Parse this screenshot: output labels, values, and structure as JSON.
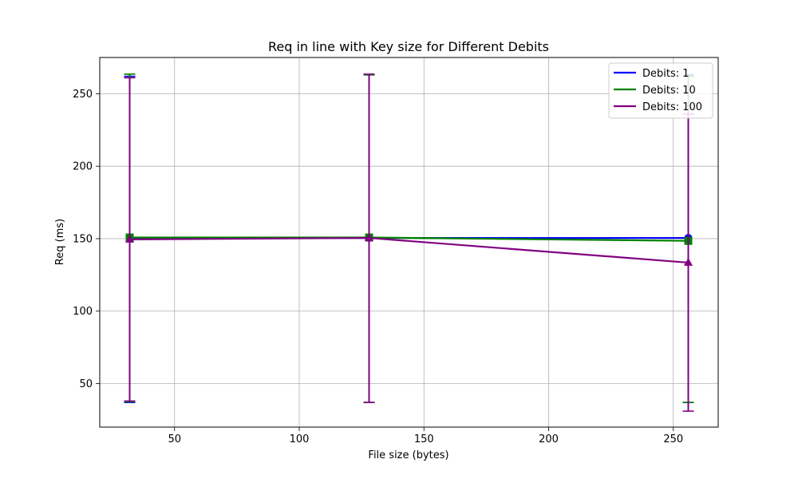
{
  "chart_data": {
    "type": "line",
    "title": "Req in line with Key size for Different Debits",
    "xlabel": "File size (bytes)",
    "ylabel": "Req (ms)",
    "xlim": [
      20,
      268
    ],
    "ylim": [
      20,
      275
    ],
    "xticks": [
      50,
      100,
      150,
      200,
      250
    ],
    "yticks": [
      50,
      100,
      150,
      200,
      250
    ],
    "grid": true,
    "legend_position": "top-right",
    "x": [
      32,
      128,
      256
    ],
    "series": [
      {
        "name": "Debits: 1",
        "color": "#0000ff",
        "marker": "circle",
        "values": [
          150.5,
          150.5,
          150.5
        ],
        "err_low": [
          37,
          37,
          37
        ],
        "err_high": [
          262,
          263,
          263
        ]
      },
      {
        "name": "Debits: 10",
        "color": "#008000",
        "marker": "square",
        "values": [
          150.8,
          150.8,
          148.5
        ],
        "err_low": [
          37.5,
          37,
          37
        ],
        "err_high": [
          263.5,
          263,
          262
        ]
      },
      {
        "name": "Debits: 100",
        "color": "#800080",
        "marker": "triangle",
        "values": [
          149.5,
          150.5,
          133.5
        ],
        "err_low": [
          38,
          37,
          31
        ],
        "err_high": [
          261,
          263.5,
          236
        ]
      }
    ]
  }
}
